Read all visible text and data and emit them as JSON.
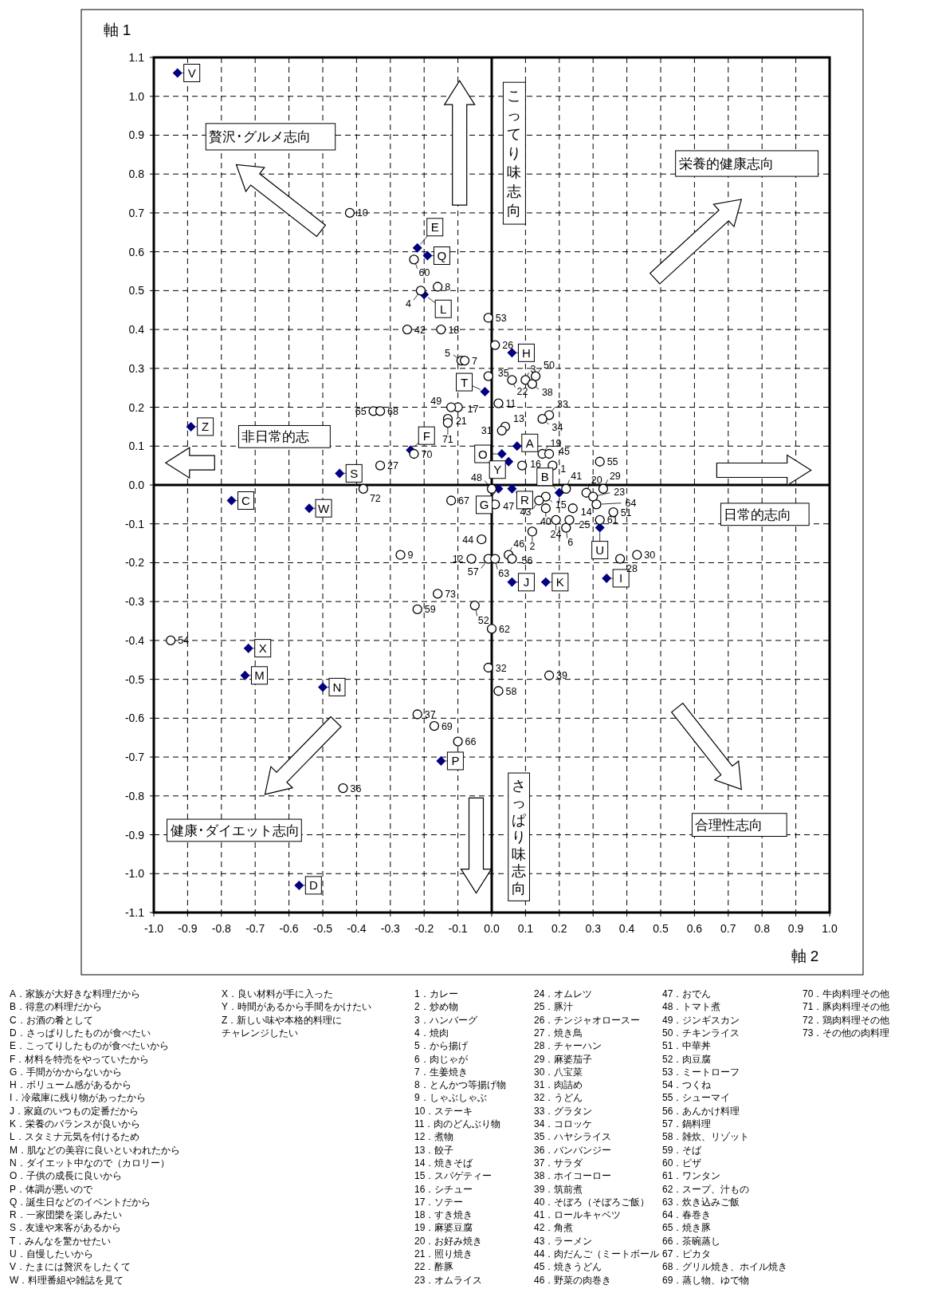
{
  "chart_data": {
    "type": "scatter",
    "xlabel": "軸 2",
    "ylabel": "軸 1",
    "xlim": [
      -1.0,
      1.0
    ],
    "ylim": [
      -1.1,
      1.1
    ],
    "xticks": [
      {
        "value": -1.0,
        "label": "-1.0"
      },
      {
        "value": -0.9,
        "label": "-0.9"
      },
      {
        "value": -0.8,
        "label": "-0.8"
      },
      {
        "value": -0.7,
        "label": "-0.7"
      },
      {
        "value": -0.6,
        "label": "-0.6"
      },
      {
        "value": -0.5,
        "label": "-0.5"
      },
      {
        "value": -0.4,
        "label": "-0.4"
      },
      {
        "value": -0.3,
        "label": "-0.3"
      },
      {
        "value": -0.2,
        "label": "-0.2"
      },
      {
        "value": -0.1,
        "label": "-0.1"
      },
      {
        "value": 0,
        "label": "0.0"
      },
      {
        "value": 0.1,
        "label": "0.1"
      },
      {
        "value": 0.2,
        "label": "0.2"
      },
      {
        "value": 0.3,
        "label": "0.3"
      },
      {
        "value": 0.4,
        "label": "0.4"
      },
      {
        "value": 0.5,
        "label": "0.5"
      },
      {
        "value": 0.6,
        "label": "0.6"
      },
      {
        "value": 0.7,
        "label": "0.7"
      },
      {
        "value": 0.8,
        "label": "0.8"
      },
      {
        "value": 0.9,
        "label": "0.9"
      },
      {
        "value": 1.0,
        "label": "1.0"
      }
    ],
    "yticks": [
      {
        "value": -1.1,
        "label": "-1.1"
      },
      {
        "value": -1.0,
        "label": "-1.0"
      },
      {
        "value": -0.9,
        "label": "-0.9"
      },
      {
        "value": -0.8,
        "label": "-0.8"
      },
      {
        "value": -0.7,
        "label": "-0.7"
      },
      {
        "value": -0.6,
        "label": "-0.6"
      },
      {
        "value": -0.5,
        "label": "-0.5"
      },
      {
        "value": -0.4,
        "label": "-0.4"
      },
      {
        "value": -0.3,
        "label": "-0.3"
      },
      {
        "value": -0.2,
        "label": "-0.2"
      },
      {
        "value": -0.1,
        "label": "-0.1"
      },
      {
        "value": 0,
        "label": "0.0"
      },
      {
        "value": 0.1,
        "label": "0.1"
      },
      {
        "value": 0.2,
        "label": "0.2"
      },
      {
        "value": 0.3,
        "label": "0.3"
      },
      {
        "value": 0.4,
        "label": "0.4"
      },
      {
        "value": 0.5,
        "label": "0.5"
      },
      {
        "value": 0.6,
        "label": "0.6"
      },
      {
        "value": 0.7,
        "label": "0.7"
      },
      {
        "value": 0.8,
        "label": "0.8"
      },
      {
        "value": 0.9,
        "label": "0.9"
      },
      {
        "value": 1.0,
        "label": "1.0"
      },
      {
        "value": 1.1,
        "label": "1.1"
      }
    ],
    "grid": true,
    "series": [
      {
        "color": "#000080",
        "marker": "diamond",
        "x": [
          0.075,
          0.2,
          -0.77,
          -0.57,
          -0.22,
          -0.24,
          0.02,
          0.06,
          0.34,
          0.06,
          0.16,
          -0.2,
          -0.73,
          -0.5,
          0.03,
          -0.15,
          -0.19,
          0.06,
          -0.45,
          -0.02,
          0.32,
          -0.93,
          -0.54,
          -0.72,
          0.05,
          -0.89
        ],
        "values": [
          0.1,
          -0.02,
          -0.04,
          -1.03,
          0.61,
          0.09,
          -0.01,
          0.34,
          -0.24,
          -0.25,
          -0.25,
          0.49,
          -0.49,
          -0.52,
          0.08,
          -0.71,
          0.59,
          -0.01,
          0.03,
          0.24,
          -0.11,
          1.06,
          -0.06,
          -0.42,
          0.06,
          0.15
        ]
      },
      {
        "color": "#000000",
        "marker": "circle",
        "x": [
          0.18,
          0.12,
          0.1,
          -0.21,
          -0.09,
          0.22,
          -0.08,
          -0.16,
          -0.27,
          -0.42,
          0.02,
          -0.06,
          0.04,
          0.24,
          0.16,
          0.09,
          -0.1,
          -0.15,
          0.15,
          0.28,
          -0.13,
          0.06,
          0.3,
          0.19,
          0.23,
          0.01,
          -0.33,
          0.38,
          0.33,
          0.43,
          0.03,
          -0.01,
          0.17,
          0.15,
          -0.01,
          -0.44,
          -0.22,
          0.12,
          0.17,
          0.16,
          0.22,
          -0.25,
          0.14,
          -0.03,
          0.17,
          0.05,
          0.01,
          0.0,
          -0.12,
          0.13,
          0.36,
          -0.05,
          -0.01,
          -0.95,
          0.32,
          0.06,
          -0.01,
          0.02,
          -0.22,
          -0.23,
          0.32,
          0.0,
          0.01,
          0.31,
          -0.35,
          -0.1,
          -0.12,
          -0.33,
          -0.17,
          -0.23,
          -0.13,
          -0.38,
          -0.16
        ],
        "values": [
          0.05,
          -0.12,
          0.27,
          0.5,
          0.32,
          -0.11,
          0.32,
          0.51,
          -0.18,
          0.7,
          0.21,
          -0.19,
          0.15,
          -0.06,
          -0.03,
          0.05,
          0.2,
          0.4,
          0.08,
          -0.02,
          0.17,
          0.27,
          -0.03,
          -0.09,
          -0.09,
          0.36,
          0.05,
          -0.19,
          -0.01,
          -0.18,
          0.14,
          -0.47,
          0.18,
          0.17,
          0.28,
          -0.78,
          -0.59,
          0.26,
          -0.49,
          -0.06,
          -0.01,
          0.4,
          -0.04,
          -0.14,
          0.08,
          -0.18,
          -0.05,
          -0.01,
          0.2,
          0.28,
          -0.07,
          -0.31,
          0.43,
          -0.4,
          0.06,
          -0.19,
          -0.19,
          -0.53,
          -0.32,
          0.58,
          -0.09,
          -0.37,
          -0.19,
          -0.05,
          0.19,
          -0.66,
          -0.04,
          0.19,
          -0.62,
          0.08,
          0.16,
          -0.01,
          -0.28
        ]
      }
    ],
    "annotations": [
      "贅沢･グルメ志向",
      "こってり味志向",
      "栄養的健康志向",
      "非日常的志",
      "日常的志向",
      "健康･ダイエット志向",
      "さっぱり味志向",
      "合理性志向",
      "A．家族が大好きな料理だから",
      "B．得意の料理だから",
      "C．お酒の肴として",
      "D．さっぱりしたものが食べたい",
      "E．こってりしたものが食べたいから",
      "F．材料を特売をやっていたから",
      "G．手間がかからないから",
      "H．ボリューム感があるから",
      "I．冷蔵庫に残り物があったから",
      "J．家庭のいつもの定番だから",
      "K．栄養のバランスが良いから",
      "L．スタミナ元気を付けるため",
      "M．肌などの美容に良いといわれたから",
      "N．ダイエット中なので（カロリー）",
      "O．子供の成長に良いから",
      "P．体調が悪いので",
      "Q．誕生日などのイベントだから",
      "R．一家団欒を楽しみたい",
      "S．友達や来客があるから",
      "T．みんなを驚かせたい",
      "U．自慢したいから",
      "V．たまには贅沢をしたくて",
      "W．料理番組や雑誌を見て",
      "X．良い材料が手に入った",
      "Y．時間があるから手間をかけたい",
      "Z．新しい味や本格的料理に",
      "チャレンジしたい",
      "1．カレー",
      "2．炒め物",
      "3．ハンバーグ",
      "4．焼肉",
      "5．から揚げ",
      "6．肉じゃが",
      "7．生姜焼き",
      "8．とんかつ等揚げ物",
      "9．しゃぶしゃぶ",
      "10．ステーキ",
      "11．肉のどんぶり物",
      "12．煮物",
      "13．餃子",
      "14．焼きそば",
      "15．スパゲティー",
      "16．シチュー",
      "17．ソテー",
      "18．すき焼き",
      "19．麻婆豆腐",
      "20．お好み焼き",
      "21．照り焼き",
      "22．酢豚",
      "23．オムライス",
      "24．オムレツ",
      "25．豚汁",
      "26．チンジャオロースー",
      "27．焼き鳥",
      "28．チャーハン",
      "29．麻婆茄子",
      "30．八宝菜",
      "31．肉詰め",
      "32．うどん",
      "33．グラタン",
      "34．コロッケ",
      "35．ハヤシライス",
      "36．バンバンジー",
      "37．サラダ",
      "38．ホイコーロー",
      "39．筑前煮",
      "40．そぼろ（そぼろご飯）",
      "41．ロールキャベツ",
      "42．角煮",
      "43．ラーメン",
      "44．肉だんご（ミートボール",
      "45．焼きうどん",
      "46．野菜の肉巻き",
      "47．おでん",
      "48．トマト煮",
      "49．ジンギスカン",
      "50．チキンライス",
      "51．中華丼",
      "52．肉豆腐",
      "53．ミートローフ",
      "54．つくね",
      "55．シューマイ",
      "56．あんかけ料理",
      "57．鍋料理",
      "58．雑炊、リゾット",
      "59．そば",
      "60．ピザ",
      "61．ワンタン",
      "62．スープ、汁もの",
      "63．炊き込みご飯",
      "64．春巻き",
      "65．焼き豚",
      "66．茶碗蒸し",
      "67．ピカタ",
      "68．グリル焼き、ホイル焼き",
      "69．蒸し物、ゆで物",
      "70．牛肉料理その他",
      "71．豚肉料理その他",
      "72．鶏肉料理その他",
      "73．その他の肉料理",
      {
        "text": "A",
        "x": 0.075,
        "y": 0.1
      },
      {
        "text": "B",
        "x": 0.2,
        "y": -0.02
      },
      {
        "text": "C",
        "x": -0.77,
        "y": -0.04
      },
      {
        "text": "D",
        "x": -0.57,
        "y": -1.03
      },
      {
        "text": "E",
        "x": -0.22,
        "y": 0.61
      },
      {
        "text": "F",
        "x": -0.24,
        "y": 0.09
      },
      {
        "text": "G",
        "x": 0.02,
        "y": -0.01
      },
      {
        "text": "H",
        "x": 0.06,
        "y": 0.34
      },
      {
        "text": "I",
        "x": 0.34,
        "y": -0.24
      },
      {
        "text": "J",
        "x": 0.06,
        "y": -0.25
      },
      {
        "text": "K",
        "x": 0.16,
        "y": -0.25
      },
      {
        "text": "L",
        "x": -0.2,
        "y": 0.49
      },
      {
        "text": "M",
        "x": -0.73,
        "y": -0.49
      },
      {
        "text": "N",
        "x": -0.5,
        "y": -0.52
      },
      {
        "text": "O",
        "x": 0.03,
        "y": 0.08
      },
      {
        "text": "P",
        "x": -0.15,
        "y": -0.71
      },
      {
        "text": "Q",
        "x": -0.19,
        "y": 0.59
      },
      {
        "text": "R",
        "x": 0.06,
        "y": -0.01
      },
      {
        "text": "S",
        "x": -0.45,
        "y": 0.03
      },
      {
        "text": "T",
        "x": -0.02,
        "y": 0.24
      },
      {
        "text": "U",
        "x": 0.32,
        "y": -0.11
      },
      {
        "text": "V",
        "x": -0.93,
        "y": 1.06
      },
      {
        "text": "W",
        "x": -0.54,
        "y": -0.06
      },
      {
        "text": "X",
        "x": -0.72,
        "y": -0.42
      },
      {
        "text": "Y",
        "x": 0.05,
        "y": 0.06
      },
      {
        "text": "Z",
        "x": -0.89,
        "y": 0.15
      },
      {
        "text": "1",
        "x": 0.18,
        "y": 0.05
      },
      {
        "text": "2",
        "x": 0.12,
        "y": -0.12
      },
      {
        "text": "3",
        "x": 0.1,
        "y": 0.27
      },
      {
        "text": "4",
        "x": -0.21,
        "y": 0.5
      },
      {
        "text": "5",
        "x": -0.09,
        "y": 0.32
      },
      {
        "text": "6",
        "x": 0.22,
        "y": -0.11
      },
      {
        "text": "7",
        "x": -0.08,
        "y": 0.32
      },
      {
        "text": "8",
        "x": -0.16,
        "y": 0.51
      },
      {
        "text": "9",
        "x": -0.27,
        "y": -0.18
      },
      {
        "text": "10",
        "x": -0.42,
        "y": 0.7
      },
      {
        "text": "11",
        "x": 0.02,
        "y": 0.21
      },
      {
        "text": "12",
        "x": -0.06,
        "y": -0.19
      },
      {
        "text": "13",
        "x": 0.04,
        "y": 0.15
      },
      {
        "text": "14",
        "x": 0.24,
        "y": -0.06
      },
      {
        "text": "15",
        "x": 0.16,
        "y": -0.03
      },
      {
        "text": "16",
        "x": 0.09,
        "y": 0.05
      },
      {
        "text": "17",
        "x": -0.1,
        "y": 0.2
      },
      {
        "text": "18",
        "x": -0.15,
        "y": 0.4
      },
      {
        "text": "19",
        "x": 0.15,
        "y": 0.08
      },
      {
        "text": "20",
        "x": 0.28,
        "y": -0.02
      },
      {
        "text": "21",
        "x": -0.13,
        "y": 0.17
      },
      {
        "text": "22",
        "x": 0.06,
        "y": 0.27
      },
      {
        "text": "23",
        "x": 0.3,
        "y": -0.03
      },
      {
        "text": "24",
        "x": 0.19,
        "y": -0.09
      },
      {
        "text": "25",
        "x": 0.23,
        "y": -0.09
      },
      {
        "text": "26",
        "x": 0.01,
        "y": 0.36
      },
      {
        "text": "27",
        "x": -0.33,
        "y": 0.05
      },
      {
        "text": "28",
        "x": 0.38,
        "y": -0.19
      },
      {
        "text": "29",
        "x": 0.33,
        "y": -0.01
      },
      {
        "text": "30",
        "x": 0.43,
        "y": -0.18
      },
      {
        "text": "31",
        "x": 0.03,
        "y": 0.14
      },
      {
        "text": "32",
        "x": -0.01,
        "y": -0.47
      },
      {
        "text": "33",
        "x": 0.17,
        "y": 0.18
      },
      {
        "text": "34",
        "x": 0.15,
        "y": 0.17
      },
      {
        "text": "35",
        "x": -0.01,
        "y": 0.28
      },
      {
        "text": "36",
        "x": -0.44,
        "y": -0.78
      },
      {
        "text": "37",
        "x": -0.22,
        "y": -0.59
      },
      {
        "text": "38",
        "x": 0.12,
        "y": 0.26
      },
      {
        "text": "39",
        "x": 0.17,
        "y": -0.49
      },
      {
        "text": "40",
        "x": 0.16,
        "y": -0.06
      },
      {
        "text": "41",
        "x": 0.22,
        "y": -0.01
      },
      {
        "text": "42",
        "x": -0.25,
        "y": 0.4
      },
      {
        "text": "43",
        "x": 0.14,
        "y": -0.04
      },
      {
        "text": "44",
        "x": -0.03,
        "y": -0.14
      },
      {
        "text": "45",
        "x": 0.17,
        "y": 0.08
      },
      {
        "text": "46",
        "x": 0.05,
        "y": -0.18
      },
      {
        "text": "47",
        "x": 0.01,
        "y": -0.05
      },
      {
        "text": "48",
        "x": 0.0,
        "y": -0.01
      },
      {
        "text": "49",
        "x": -0.12,
        "y": 0.2
      },
      {
        "text": "50",
        "x": 0.13,
        "y": 0.28
      },
      {
        "text": "51",
        "x": 0.36,
        "y": -0.07
      },
      {
        "text": "52",
        "x": -0.05,
        "y": -0.31
      },
      {
        "text": "53",
        "x": -0.01,
        "y": 0.43
      },
      {
        "text": "54",
        "x": -0.95,
        "y": -0.4
      },
      {
        "text": "55",
        "x": 0.32,
        "y": 0.06
      },
      {
        "text": "56",
        "x": 0.06,
        "y": -0.19
      },
      {
        "text": "57",
        "x": -0.01,
        "y": -0.19
      },
      {
        "text": "58",
        "x": 0.02,
        "y": -0.53
      },
      {
        "text": "59",
        "x": -0.22,
        "y": -0.32
      },
      {
        "text": "60",
        "x": -0.23,
        "y": 0.58
      },
      {
        "text": "61",
        "x": 0.32,
        "y": -0.09
      },
      {
        "text": "62",
        "x": 0.0,
        "y": -0.37
      },
      {
        "text": "63",
        "x": 0.01,
        "y": -0.19
      },
      {
        "text": "64",
        "x": 0.31,
        "y": -0.05
      },
      {
        "text": "65",
        "x": -0.35,
        "y": 0.19
      },
      {
        "text": "66",
        "x": -0.1,
        "y": -0.66
      },
      {
        "text": "67",
        "x": -0.12,
        "y": -0.04
      },
      {
        "text": "68",
        "x": -0.33,
        "y": 0.19
      },
      {
        "text": "69",
        "x": -0.17,
        "y": -0.62
      },
      {
        "text": "70",
        "x": -0.23,
        "y": 0.08
      },
      {
        "text": "71",
        "x": -0.13,
        "y": 0.16
      },
      {
        "text": "72",
        "x": -0.38,
        "y": -0.01
      },
      {
        "text": "73",
        "x": -0.16,
        "y": -0.28
      }
    ]
  }
}
